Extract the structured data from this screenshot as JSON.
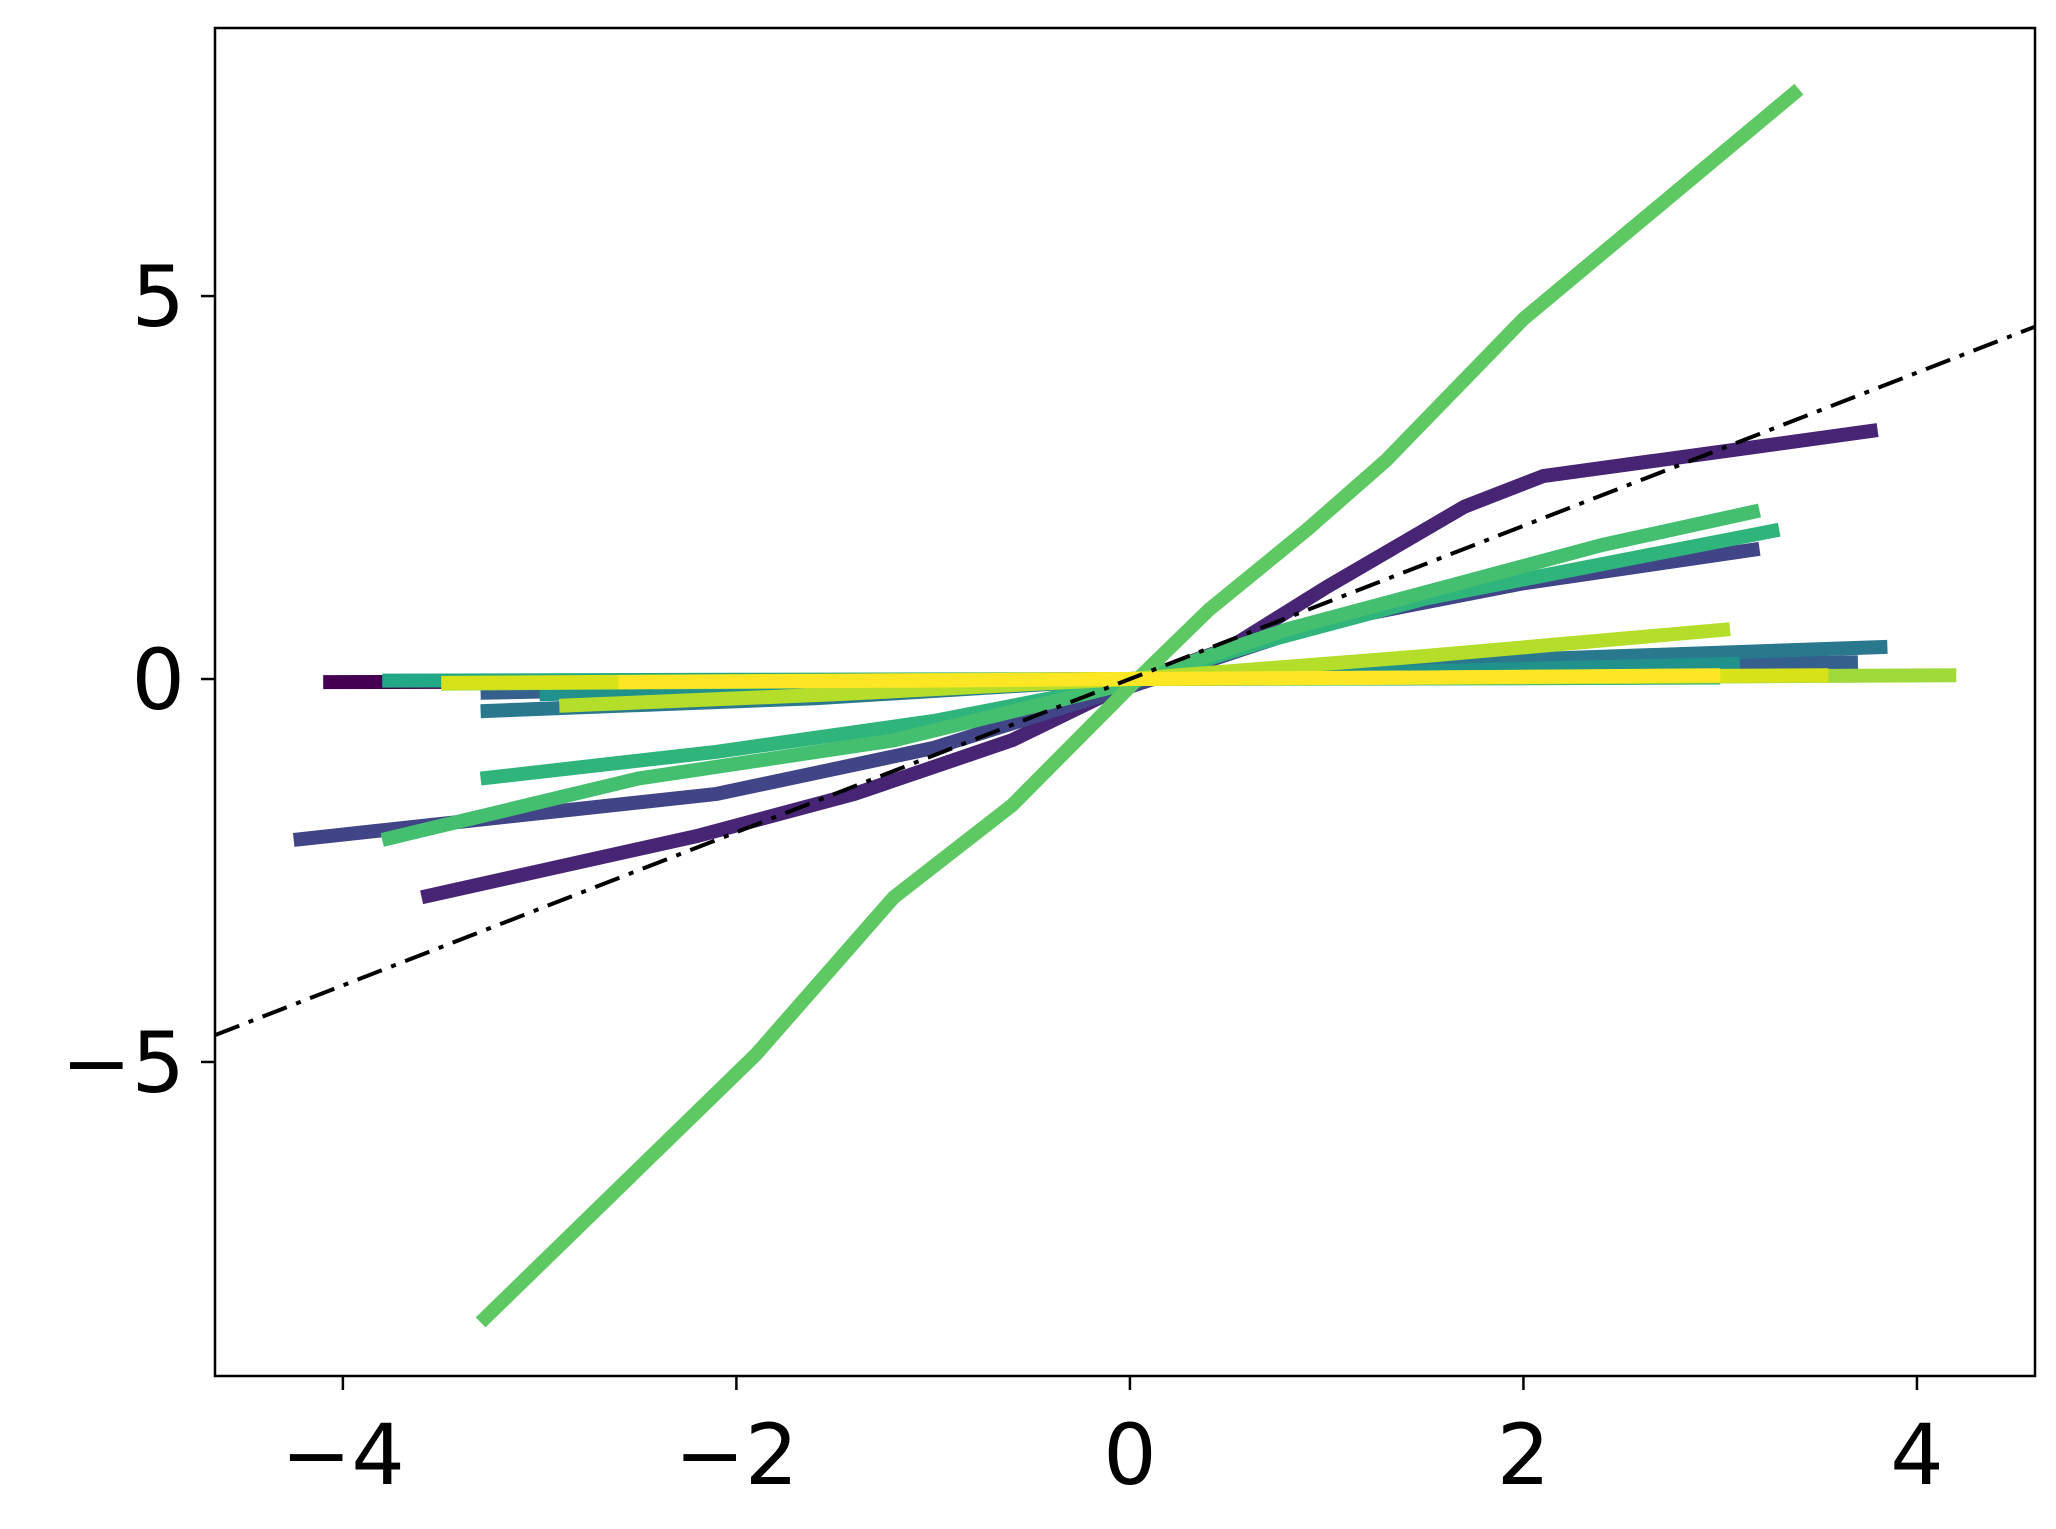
{
  "chart_data": {
    "type": "line",
    "title": "",
    "xlabel": "",
    "ylabel": "",
    "xlim": [
      -4.65,
      4.6
    ],
    "ylim": [
      -9.1,
      8.5
    ],
    "grid": false,
    "legend": "none",
    "x_ticks": [
      {
        "value": -4,
        "label": "−4"
      },
      {
        "value": -2,
        "label": "−2"
      },
      {
        "value": 0,
        "label": "0"
      },
      {
        "value": 2,
        "label": "2"
      },
      {
        "value": 4,
        "label": "4"
      }
    ],
    "y_ticks": [
      {
        "value": 5,
        "label": "5"
      },
      {
        "value": 0,
        "label": "0"
      },
      {
        "value": -5,
        "label": "−5"
      }
    ],
    "reference_line": {
      "style": "dash-dot",
      "color": "#000000",
      "points": [
        [
          -4.65,
          -4.65
        ],
        [
          4.6,
          4.6
        ]
      ]
    },
    "series": [
      {
        "color": "#440154",
        "points": [
          [
            -4.1,
            -0.04
          ],
          [
            -2.0,
            -0.03
          ],
          [
            0.0,
            0.0
          ],
          [
            2.0,
            0.02
          ],
          [
            3.5,
            0.05
          ]
        ]
      },
      {
        "color": "#482475",
        "points": [
          [
            -3.6,
            -2.85
          ],
          [
            -2.2,
            -2.05
          ],
          [
            -1.4,
            -1.5
          ],
          [
            -0.6,
            -0.8
          ],
          [
            0.0,
            -0.05
          ],
          [
            0.5,
            0.4
          ],
          [
            1.0,
            1.2
          ],
          [
            1.7,
            2.25
          ],
          [
            2.1,
            2.65
          ],
          [
            3.8,
            3.25
          ]
        ]
      },
      {
        "color": "#414487",
        "points": [
          [
            -4.25,
            -2.1
          ],
          [
            -2.1,
            -1.5
          ],
          [
            -1.0,
            -0.9
          ],
          [
            0.0,
            -0.1
          ],
          [
            1.0,
            0.75
          ],
          [
            2.0,
            1.25
          ],
          [
            3.2,
            1.7
          ]
        ]
      },
      {
        "color": "#355f8d",
        "points": [
          [
            -3.3,
            -0.18
          ],
          [
            -1.5,
            -0.08
          ],
          [
            0.0,
            0.0
          ],
          [
            1.5,
            0.12
          ],
          [
            3.7,
            0.22
          ]
        ]
      },
      {
        "color": "#2a788e",
        "points": [
          [
            -3.3,
            -0.42
          ],
          [
            -1.6,
            -0.25
          ],
          [
            0.0,
            0.0
          ],
          [
            1.6,
            0.22
          ],
          [
            3.85,
            0.42
          ]
        ]
      },
      {
        "color": "#21918c",
        "points": [
          [
            -3.0,
            -0.2
          ],
          [
            -1.5,
            -0.1
          ],
          [
            0.0,
            0.0
          ],
          [
            1.5,
            0.1
          ],
          [
            3.1,
            0.2
          ]
        ]
      },
      {
        "color": "#22a884",
        "points": [
          [
            -3.8,
            -0.02
          ],
          [
            -2.0,
            -0.01
          ],
          [
            0.0,
            0.0
          ],
          [
            2.0,
            0.01
          ],
          [
            3.0,
            0.02
          ]
        ]
      },
      {
        "color": "#2fb47c",
        "points": [
          [
            -3.3,
            -1.3
          ],
          [
            -2.1,
            -0.95
          ],
          [
            -1.0,
            -0.55
          ],
          [
            0.0,
            -0.05
          ],
          [
            0.7,
            0.5
          ],
          [
            1.5,
            1.05
          ],
          [
            2.4,
            1.5
          ],
          [
            3.3,
            1.95
          ]
        ]
      },
      {
        "color": "#44bf70",
        "points": [
          [
            -3.8,
            -2.1
          ],
          [
            -2.5,
            -1.3
          ],
          [
            -1.2,
            -0.8
          ],
          [
            0.0,
            -0.05
          ],
          [
            0.8,
            0.65
          ],
          [
            1.6,
            1.2
          ],
          [
            2.4,
            1.75
          ],
          [
            3.2,
            2.2
          ]
        ]
      },
      {
        "color": "#5ec962",
        "points": [
          [
            -3.3,
            -8.4
          ],
          [
            -1.9,
            -4.9
          ],
          [
            -1.2,
            -2.85
          ],
          [
            -0.6,
            -1.65
          ],
          [
            0.0,
            -0.1
          ],
          [
            0.4,
            0.9
          ],
          [
            0.9,
            1.95
          ],
          [
            1.3,
            2.85
          ],
          [
            2.0,
            4.7
          ],
          [
            3.4,
            7.7
          ]
        ]
      },
      {
        "color": "#9fda3a",
        "points": [
          [
            -3.5,
            -0.06
          ],
          [
            -1.5,
            -0.03
          ],
          [
            0.0,
            0.0
          ],
          [
            2.0,
            0.02
          ],
          [
            4.2,
            0.05
          ]
        ]
      },
      {
        "color": "#b5de2b",
        "points": [
          [
            -2.9,
            -0.35
          ],
          [
            -1.5,
            -0.2
          ],
          [
            0.0,
            0.0
          ],
          [
            1.5,
            0.3
          ],
          [
            3.05,
            0.65
          ]
        ]
      },
      {
        "color": "#d8e219",
        "points": [
          [
            -3.5,
            -0.05
          ],
          [
            -1.5,
            -0.02
          ],
          [
            0.0,
            0.0
          ],
          [
            1.5,
            0.02
          ],
          [
            3.55,
            0.05
          ]
        ]
      },
      {
        "color": "#fde725",
        "points": [
          [
            -2.6,
            -0.04
          ],
          [
            -1.0,
            -0.02
          ],
          [
            0.0,
            0.0
          ],
          [
            1.5,
            0.02
          ],
          [
            3.0,
            0.05
          ]
        ]
      }
    ]
  }
}
